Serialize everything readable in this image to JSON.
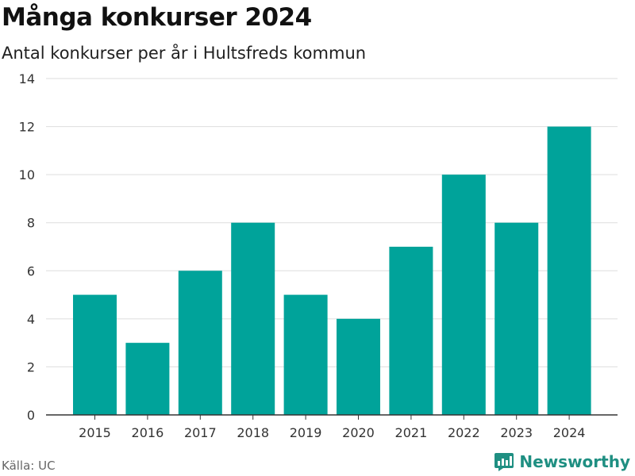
{
  "title": "Många konkurser 2024",
  "subtitle": "Antal konkurser per år i Hultsfreds kommun",
  "source": "Källa: UC",
  "brand": "Newsworthy",
  "colors": {
    "bar": "#00a39a",
    "grid": "#dddddd",
    "axis": "#333333",
    "brand": "#1f8f82"
  },
  "chart_data": {
    "type": "bar",
    "title": "Många konkurser 2024",
    "subtitle": "Antal konkurser per år i Hultsfreds kommun",
    "categories": [
      "2015",
      "2016",
      "2017",
      "2018",
      "2019",
      "2020",
      "2021",
      "2022",
      "2023",
      "2024"
    ],
    "values": [
      5,
      3,
      6,
      8,
      5,
      4,
      7,
      10,
      8,
      12
    ],
    "ylim": [
      0,
      14
    ],
    "yticks": [
      0,
      2,
      4,
      6,
      8,
      10,
      12,
      14
    ],
    "grid": true
  }
}
